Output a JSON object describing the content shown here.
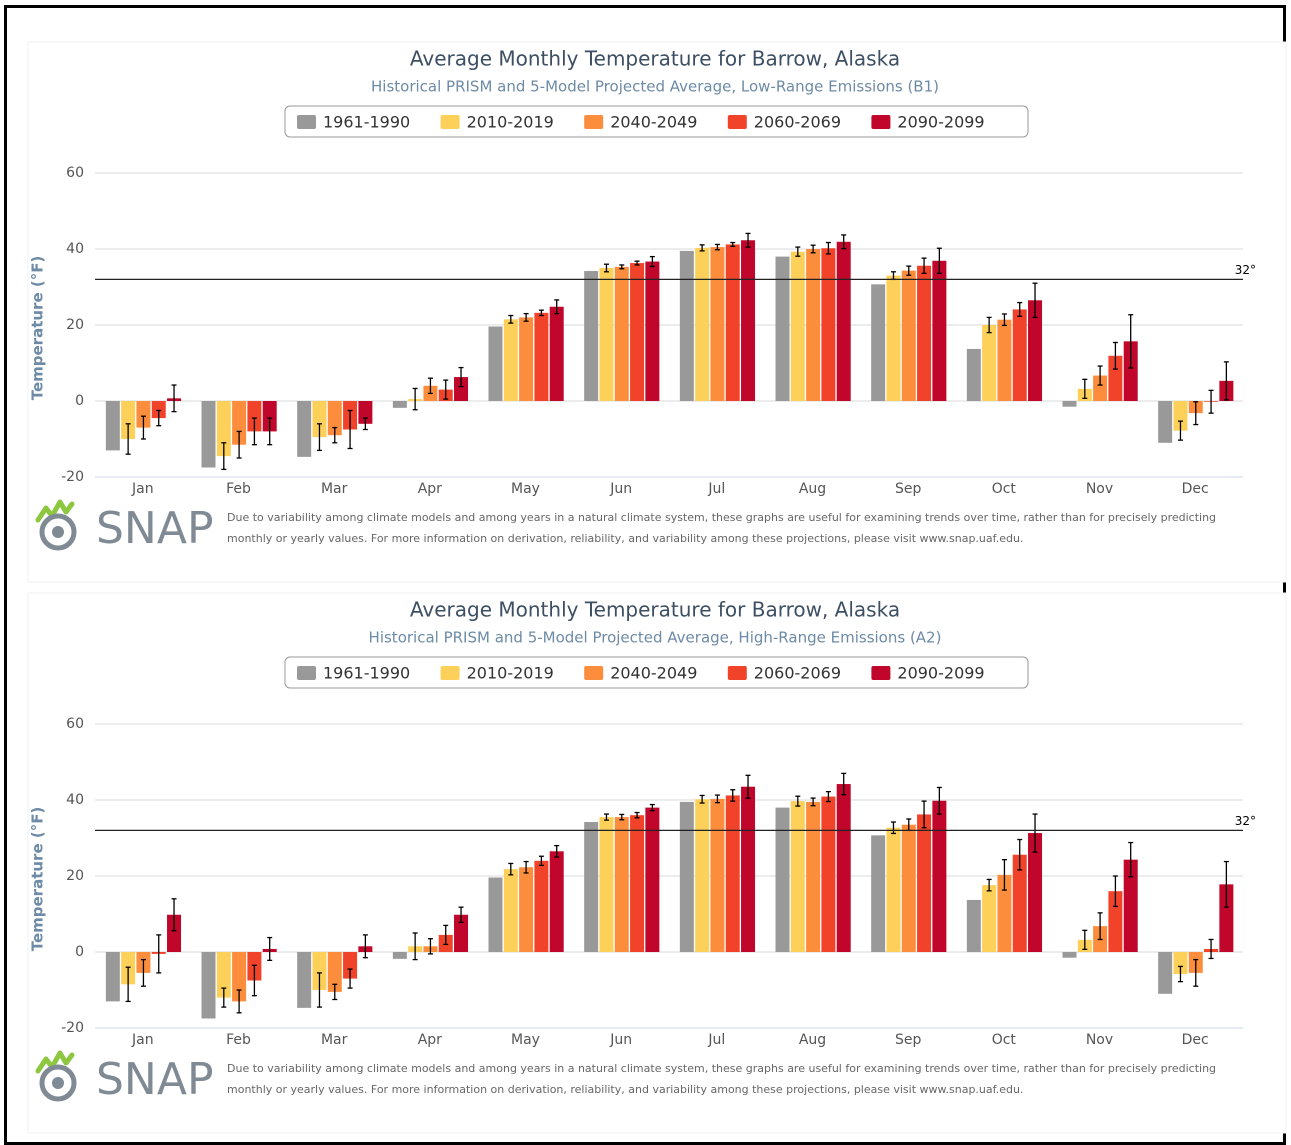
{
  "chart_data": [
    {
      "type": "bar",
      "title": "Average Monthly Temperature for Barrow, Alaska",
      "subtitle": "Historical PRISM and 5-Model Projected Average, Low-Range Emissions (B1)",
      "y_label": "Temperature (°F)",
      "categories": [
        "Jan",
        "Feb",
        "Mar",
        "Apr",
        "May",
        "Jun",
        "Jul",
        "Aug",
        "Sep",
        "Oct",
        "Nov",
        "Dec"
      ],
      "series": [
        {
          "name": "1961-1990",
          "color": "#999999",
          "values": [
            -13,
            -17.5,
            -14.7,
            -1.8,
            19.6,
            34.2,
            39.5,
            38,
            30.7,
            13.7,
            -1.5,
            -11
          ]
        },
        {
          "name": "2010-2019",
          "color": "#fdd05a",
          "values": [
            -10,
            -14.5,
            -9.5,
            0.5,
            21.5,
            35,
            40.3,
            39.3,
            33,
            20,
            3.2,
            -7.8
          ],
          "errors": [
            4,
            3.5,
            3.5,
            2.8,
            1,
            1,
            0.8,
            1.2,
            1,
            2,
            2.5,
            2.5
          ]
        },
        {
          "name": "2040-2049",
          "color": "#fc8d3c",
          "values": [
            -7,
            -11.5,
            -9,
            4,
            22,
            35.3,
            40.5,
            40,
            34.3,
            21.4,
            6.7,
            -3.2
          ],
          "errors": [
            3,
            3.5,
            2,
            2,
            1,
            0.5,
            0.7,
            1,
            1.2,
            1.5,
            2.5,
            3
          ]
        },
        {
          "name": "2060-2069",
          "color": "#f0432a",
          "values": [
            -4.5,
            -8,
            -7.5,
            3,
            23.2,
            36.3,
            41.2,
            40.2,
            35.6,
            24.1,
            11.9,
            -0.2
          ],
          "errors": [
            2,
            3.5,
            5,
            2.5,
            0.7,
            0.5,
            0.5,
            1.5,
            2,
            1.8,
            3.5,
            3
          ]
        },
        {
          "name": "2090-2099",
          "color": "#c0062b",
          "values": [
            0.7,
            -8,
            -6,
            6.3,
            24.8,
            36.7,
            42.3,
            41.9,
            36.9,
            26.5,
            15.7,
            5.3
          ],
          "errors": [
            3.5,
            3.5,
            1.5,
            2.5,
            1.8,
            1.3,
            1.8,
            1.8,
            3.3,
            4.5,
            7,
            5
          ]
        }
      ],
      "ylim": [
        -20,
        60
      ],
      "yticks": [
        -20,
        0,
        20,
        40,
        60
      ],
      "grid": true,
      "reference_line": {
        "value": 32,
        "label": "32°"
      },
      "logo": "SNAP",
      "note": "Due to variability among climate models and among years in a natural climate system, these graphs are useful for examining trends over time, rather than for precisely predicting monthly or yearly values. For more information on derivation, reliability, and variability among these projections, please visit www.snap.uaf.edu."
    },
    {
      "type": "bar",
      "title": "Average Monthly Temperature for Barrow, Alaska",
      "subtitle": "Historical PRISM and 5-Model Projected Average, High-Range Emissions (A2)",
      "y_label": "Temperature (°F)",
      "categories": [
        "Jan",
        "Feb",
        "Mar",
        "Apr",
        "May",
        "Jun",
        "Jul",
        "Aug",
        "Sep",
        "Oct",
        "Nov",
        "Dec"
      ],
      "series": [
        {
          "name": "1961-1990",
          "color": "#999999",
          "values": [
            -13,
            -17.5,
            -14.7,
            -1.8,
            19.6,
            34.2,
            39.5,
            38,
            30.7,
            13.7,
            -1.5,
            -11
          ]
        },
        {
          "name": "2010-2019",
          "color": "#fdd05a",
          "values": [
            -8.5,
            -12,
            -10,
            1.5,
            21.8,
            35.5,
            40.2,
            39.7,
            32.7,
            17.6,
            3.2,
            -5.8
          ],
          "errors": [
            4.5,
            2.5,
            4.5,
            3.5,
            1.5,
            0.8,
            1,
            1.3,
            1.5,
            1.5,
            2.5,
            2
          ]
        },
        {
          "name": "2040-2049",
          "color": "#fc8d3c",
          "values": [
            -5.5,
            -13,
            -10.5,
            1.5,
            22.3,
            35.5,
            40.3,
            39.5,
            33.5,
            20.3,
            6.8,
            -5.5
          ],
          "errors": [
            3.5,
            3,
            2,
            2,
            1.5,
            0.7,
            1,
            1,
            1.5,
            4,
            3.5,
            3.5
          ]
        },
        {
          "name": "2060-2069",
          "color": "#f0432a",
          "values": [
            -0.5,
            -7.5,
            -7,
            4.5,
            24,
            36,
            41.2,
            40.9,
            36.2,
            25.6,
            16,
            0.8
          ],
          "errors": [
            5,
            4,
            2.5,
            2.5,
            1.2,
            0.7,
            1.5,
            1.3,
            3.5,
            4,
            4,
            2.5
          ]
        },
        {
          "name": "2090-2099",
          "color": "#c0062b",
          "values": [
            9.8,
            0.8,
            1.5,
            9.8,
            26.5,
            38,
            43.5,
            44.2,
            39.8,
            31.3,
            24.3,
            17.8
          ],
          "errors": [
            4.2,
            3,
            3,
            2,
            1.5,
            0.8,
            3,
            2.8,
            3.5,
            5,
            4.5,
            6
          ]
        }
      ],
      "ylim": [
        -20,
        60
      ],
      "yticks": [
        -20,
        0,
        20,
        40,
        60
      ],
      "grid": true,
      "reference_line": {
        "value": 32,
        "label": "32°"
      },
      "logo": "SNAP",
      "note": "Due to variability among climate models and among years in a natural climate system, these graphs are useful for examining trends over time, rather than for precisely predicting monthly or yearly values. For more information on derivation, reliability, and variability among these projections, please visit www.snap.uaf.edu."
    }
  ]
}
